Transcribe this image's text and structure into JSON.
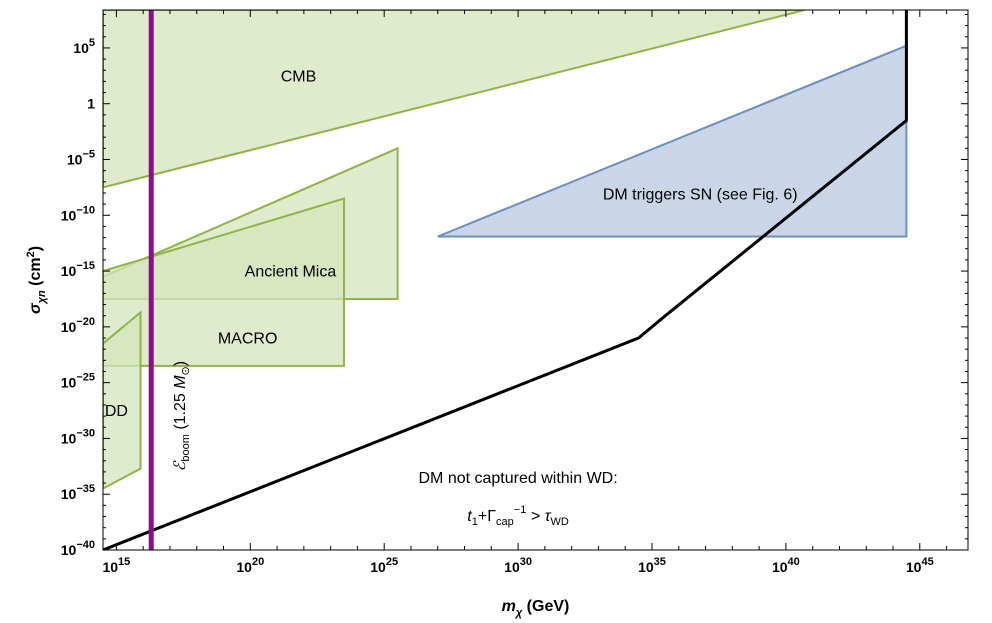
{
  "chart_data": {
    "type": "area",
    "xscale": "log",
    "yscale": "log",
    "xlim_exp": [
      14.5,
      46.8
    ],
    "ylim_exp": [
      -40,
      8.4
    ],
    "xaxis": {
      "title_symbol": "m",
      "title_sub": "χ",
      "title_unit": " (GeV)",
      "tick_exponents": [
        15,
        20,
        25,
        30,
        35,
        40,
        45
      ]
    },
    "yaxis": {
      "title_symbol": "σ",
      "title_sub": "χn",
      "title_unit": " (cm",
      "title_unit_sup": "2",
      "title_close": ")",
      "ticks": [
        {
          "exp": 5,
          "label": "10",
          "sup": "5"
        },
        {
          "exp": 0,
          "label": "1",
          "sup": ""
        },
        {
          "exp": -5,
          "label": "10",
          "sup": "−5"
        },
        {
          "exp": -10,
          "label": "10",
          "sup": "−10"
        },
        {
          "exp": -15,
          "label": "10",
          "sup": "−15"
        },
        {
          "exp": -20,
          "label": "10",
          "sup": "−20"
        },
        {
          "exp": -25,
          "label": "10",
          "sup": "−25"
        },
        {
          "exp": -30,
          "label": "10",
          "sup": "−30"
        },
        {
          "exp": -35,
          "label": "10",
          "sup": "−35"
        },
        {
          "exp": -40,
          "label": "10",
          "sup": "−40"
        }
      ]
    },
    "colors": {
      "green_fill": "#d5e4bc",
      "green_edge": "#8fb443",
      "blue_fill": "#cad6e8",
      "blue_edge": "#6a8fc0",
      "purple": "#8a0e8a",
      "black": "#000000"
    },
    "regions": [
      {
        "name": "CMB",
        "kind": "excluded",
        "polygon": [
          [
            14.5,
            -7.5
          ],
          [
            40.7,
            8.4
          ],
          [
            14.5,
            8.4
          ]
        ],
        "label": {
          "text": "CMB",
          "at": [
            21.8,
            2.0
          ]
        }
      },
      {
        "name": "Ancient Mica",
        "kind": "excluded",
        "polygon": [
          [
            14.5,
            -15.5
          ],
          [
            25.5,
            -4.0
          ],
          [
            25.5,
            -17.5
          ],
          [
            14.5,
            -17.5
          ]
        ],
        "label": {
          "text": "Ancient Mica",
          "at": [
            21.5,
            -15.5
          ]
        }
      },
      {
        "name": "MACRO",
        "kind": "excluded",
        "polygon": [
          [
            14.5,
            -15.0
          ],
          [
            23.5,
            -8.5
          ],
          [
            23.5,
            -23.5
          ],
          [
            14.5,
            -23.5
          ]
        ],
        "label": {
          "text": "MACRO",
          "at": [
            19.9,
            -21.5
          ]
        }
      },
      {
        "name": "DD",
        "kind": "excluded",
        "polygon": [
          [
            14.5,
            -21.5
          ],
          [
            15.9,
            -18.7
          ],
          [
            15.9,
            -32.7
          ],
          [
            14.5,
            -34.5
          ]
        ],
        "label": {
          "text": "DD",
          "at": [
            15.0,
            -28.0
          ]
        }
      },
      {
        "name": "DM triggers SN",
        "kind": "signal",
        "polygon": [
          [
            27.0,
            -11.9
          ],
          [
            44.5,
            5.2
          ],
          [
            44.5,
            -11.9
          ]
        ],
        "label": {
          "text": "DM triggers SN (see Fig. 6)",
          "at": [
            36.8,
            -8.6
          ]
        }
      }
    ],
    "lines": [
      {
        "name": "t1 + Gamma_cap^-1 = tau_WD boundary",
        "points": [
          [
            14.5,
            -40
          ],
          [
            34.5,
            -21.0
          ],
          [
            35.5,
            -19.0
          ],
          [
            44.5,
            -1.5
          ],
          [
            44.5,
            8.4
          ]
        ]
      },
      {
        "name": "E_boom (1.25 M_sun)",
        "x_exp": 16.3
      }
    ],
    "annotations": {
      "eboom_main": "ℰ",
      "eboom_sub": "boom",
      "eboom_open": "  (1.25 ",
      "eboom_m": "M",
      "eboom_msun": "⊙",
      "eboom_close": ")",
      "uncaptured_line1": "DM not captured within WD:",
      "uncaptured_t": "t",
      "uncaptured_t_sub": "1",
      "uncaptured_plus": "+Γ",
      "uncaptured_gamma_sub": "cap",
      "uncaptured_gamma_sup": "−1",
      "uncaptured_gt": " > τ",
      "uncaptured_tau_sub": "WD"
    }
  }
}
